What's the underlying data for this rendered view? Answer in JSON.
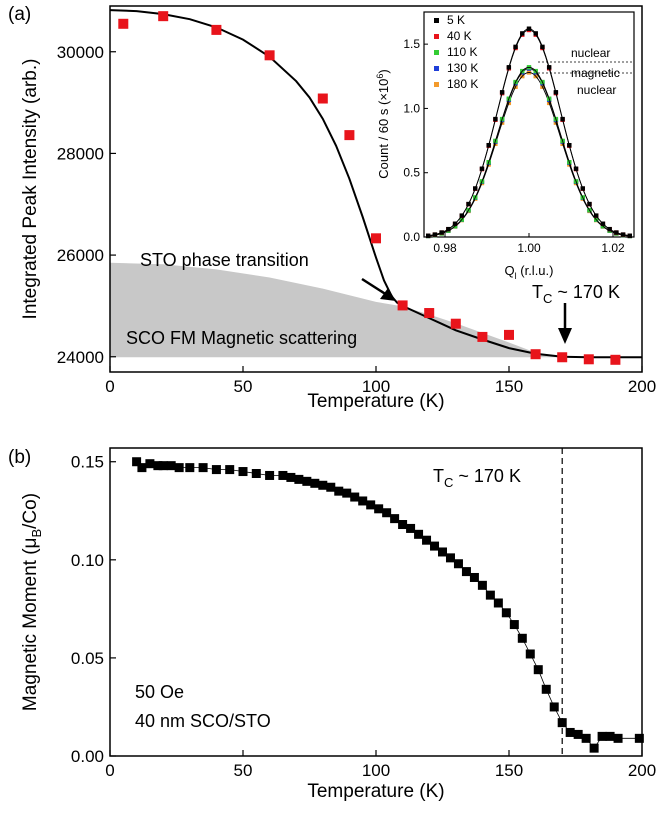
{
  "chart_data": [
    {
      "type": "scatter",
      "panel_label": "(a)",
      "xlabel": "Temperature (K)",
      "ylabel": "Integrated Peak Intensity (arb.)",
      "xlim": [
        0,
        200
      ],
      "ylim": [
        23700,
        30900
      ],
      "xticks": [
        0,
        50,
        100,
        150,
        200
      ],
      "yticks": [
        24000,
        26000,
        28000,
        30000
      ],
      "marker_color": "#e8141b",
      "points": {
        "x": [
          5,
          20,
          40,
          60,
          80,
          90,
          100,
          110,
          120,
          130,
          140,
          150,
          160,
          170,
          180,
          190
        ],
        "y": [
          30550,
          30700,
          30430,
          29930,
          29080,
          28360,
          26330,
          25010,
          24860,
          24650,
          24390,
          24430,
          24050,
          23990,
          23950,
          23940
        ]
      },
      "fit_curve": {
        "x": [
          0,
          10,
          20,
          30,
          40,
          50,
          60,
          70,
          75,
          80,
          85,
          90,
          95,
          100,
          103,
          106,
          108,
          110,
          115,
          120,
          125,
          130,
          140,
          150,
          160,
          170,
          180,
          190,
          200
        ],
        "y": [
          30820,
          30800,
          30740,
          30640,
          30480,
          30240,
          29900,
          29420,
          29100,
          28680,
          28150,
          27500,
          26750,
          25950,
          25500,
          25180,
          25060,
          25000,
          24880,
          24760,
          24640,
          24520,
          24340,
          24170,
          24060,
          24000,
          23990,
          23990,
          23990
        ]
      },
      "shaded_region": {
        "x": [
          0,
          20,
          40,
          60,
          80,
          100,
          110,
          120,
          130,
          140,
          150,
          160,
          170,
          200
        ],
        "upper": [
          25850,
          25820,
          25720,
          25560,
          25340,
          25080,
          24990,
          24830,
          24660,
          24470,
          24280,
          24080,
          24000,
          23990
        ],
        "lower": 23990,
        "color": "#c8c8c8"
      },
      "annotations": {
        "sto": "STO phase transition",
        "sco": "SCO FM Magnetic scattering",
        "tc_prefix": "T",
        "tc_sub": "C",
        "tc_suffix": " ~ 170 K"
      },
      "inset": {
        "xlabel_main": "Q",
        "xlabel_sub": "l",
        "xlabel_rest": " (r.l.u.)",
        "ylabel_main": "Count / 60 s (×10",
        "ylabel_sup": "6",
        "ylabel_end": ")",
        "xlim": [
          0.975,
          1.025
        ],
        "ylim": [
          0,
          1.75
        ],
        "xticks": [
          0.98,
          1.0,
          1.02
        ],
        "yticks": [
          0.0,
          0.5,
          1.0,
          1.5
        ],
        "labels": {
          "nuclear_top": "nuclear",
          "magnetic": "magnetic",
          "nuclear_bottom": "nuclear"
        },
        "series": [
          {
            "name": "5 K",
            "color": "#000000",
            "amp": 1.62
          },
          {
            "name": "40 K",
            "color": "#e8141b",
            "amp": 1.61
          },
          {
            "name": "110 K",
            "color": "#33cc33",
            "amp": 1.32
          },
          {
            "name": "130 K",
            "color": "#1f3fd8",
            "amp": 1.31
          },
          {
            "name": "180 K",
            "color": "#f39a2b",
            "amp": 1.28
          }
        ],
        "peak_center": 1.0,
        "peak_sigma": 0.0075
      }
    },
    {
      "type": "line",
      "panel_label": "(b)",
      "xlabel": "Temperature (K)",
      "ylabel_main": "Magnetic Moment (μ",
      "ylabel_sub": "B",
      "ylabel_end": "/Co)",
      "xlim": [
        0,
        200
      ],
      "ylim": [
        0,
        0.157
      ],
      "xticks": [
        0,
        50,
        100,
        150,
        200
      ],
      "yticks": [
        0.0,
        0.05,
        0.1,
        0.15
      ],
      "marker_color": "#000000",
      "points": {
        "x": [
          10,
          12,
          15,
          18,
          20,
          23,
          26,
          30,
          35,
          40,
          45,
          50,
          55,
          60,
          65,
          68,
          71,
          74,
          77,
          80,
          83,
          86,
          89,
          92,
          95,
          98,
          101,
          104,
          107,
          110,
          113,
          116,
          119,
          122,
          125,
          128,
          131,
          134,
          137,
          140,
          143,
          146,
          149,
          152,
          155,
          158,
          161,
          164,
          167,
          170,
          173,
          176,
          179,
          182,
          185,
          188,
          191,
          199
        ],
        "y": [
          0.15,
          0.147,
          0.149,
          0.148,
          0.148,
          0.148,
          0.147,
          0.147,
          0.147,
          0.146,
          0.146,
          0.145,
          0.144,
          0.143,
          0.143,
          0.142,
          0.141,
          0.14,
          0.139,
          0.138,
          0.137,
          0.135,
          0.134,
          0.132,
          0.13,
          0.128,
          0.126,
          0.124,
          0.121,
          0.118,
          0.116,
          0.113,
          0.11,
          0.107,
          0.104,
          0.101,
          0.098,
          0.094,
          0.091,
          0.087,
          0.082,
          0.078,
          0.073,
          0.067,
          0.06,
          0.052,
          0.044,
          0.034,
          0.025,
          0.017,
          0.012,
          0.011,
          0.009,
          0.004,
          0.01,
          0.01,
          0.009,
          0.009
        ]
      },
      "vline_x": 170,
      "annotations": {
        "tc_prefix": "T",
        "tc_sub": "C",
        "tc_suffix": " ~ 170 K",
        "field": "50 Oe",
        "sample": "40 nm SCO/STO"
      }
    }
  ]
}
